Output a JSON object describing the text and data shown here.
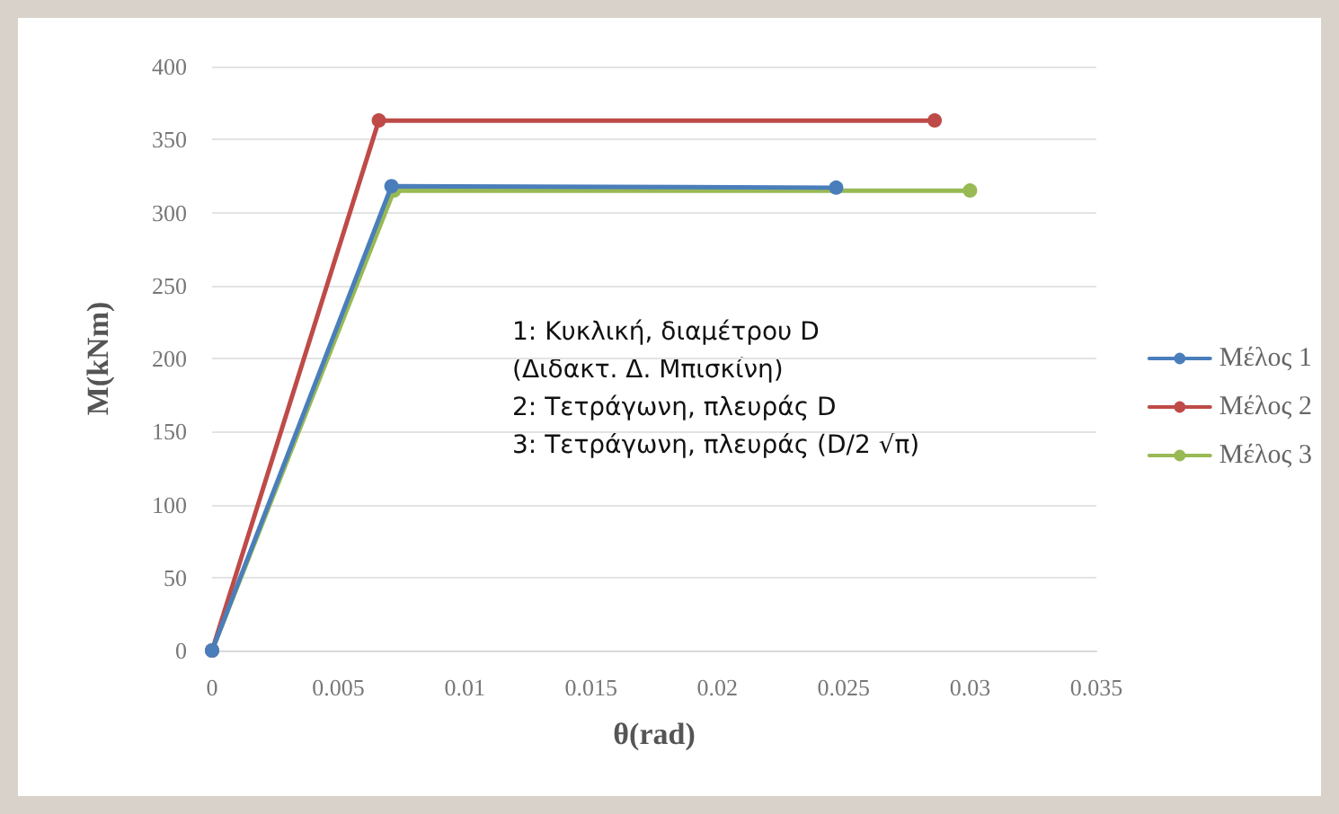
{
  "chart_data": {
    "type": "line",
    "xlabel": "θ(rad)",
    "ylabel": "M(kNm)",
    "xlim": [
      0,
      0.035
    ],
    "xticks": [
      0,
      0.005,
      0.01,
      0.015,
      0.02,
      0.025,
      0.03,
      0.035
    ],
    "ylim": [
      0,
      400
    ],
    "yticks": [
      0,
      50,
      100,
      150,
      200,
      250,
      300,
      350,
      400
    ],
    "series": [
      {
        "name": "Μέλος 1",
        "color": "#4a7ebb",
        "x": [
          0,
          0.0071,
          0.0247
        ],
        "values": [
          0,
          318,
          317
        ]
      },
      {
        "name": "Μέλος 2",
        "color": "#be4b48",
        "x": [
          0,
          0.0066,
          0.0286
        ],
        "values": [
          0,
          363,
          363
        ]
      },
      {
        "name": "Μέλος 3",
        "color": "#98b954",
        "x": [
          0,
          0.0072,
          0.03
        ],
        "values": [
          0,
          315,
          315
        ]
      }
    ],
    "annotations": [
      "1: Κυκλική, διαμέτρου D",
      "(Διδακτ. Δ. Μπισκίνη)",
      "2: Τετράγωνη, πλευράς D",
      "3: Τετράγωνη, πλευράς (D/2 √π)"
    ],
    "grid": "y",
    "legend": "right",
    "marker": "circle",
    "line_style": "solid"
  }
}
